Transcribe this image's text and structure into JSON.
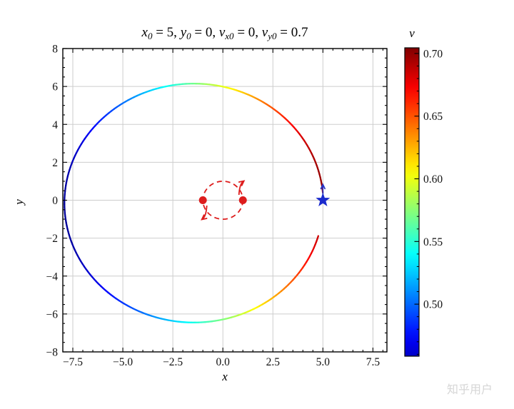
{
  "figure": {
    "title_plain": "x0 = 5, y0 = 0, vx0 = 0, vy0 = 0.7",
    "title_parts": [
      {
        "base": "x",
        "sub": "0",
        "tail": " = 5,  "
      },
      {
        "base": "y",
        "sub": "0",
        "tail": " = 0,  "
      },
      {
        "base": "v",
        "sub": "x0",
        "tail": " = 0,  "
      },
      {
        "base": "v",
        "sub": "y0",
        "tail": " = 0.7"
      }
    ],
    "xlabel": "x",
    "ylabel": "y",
    "watermark": "知乎用户"
  },
  "axes": {
    "xlim": [
      -8,
      8.2
    ],
    "ylim": [
      -8,
      8
    ],
    "x_major_ticks": [
      -7.5,
      -5,
      -2.5,
      0,
      2.5,
      5,
      7.5
    ],
    "x_tick_labels": [
      "−7.5",
      "−5.0",
      "−2.5",
      "0.0",
      "2.5",
      "5.0",
      "7.5"
    ],
    "y_major_ticks": [
      8,
      6,
      4,
      2,
      0,
      -2,
      -4,
      -6,
      -8
    ],
    "y_tick_labels": [
      "8",
      "6",
      "4",
      "2",
      "0",
      "−2",
      "−4",
      "−6",
      "−8"
    ],
    "minor_step": 0.5,
    "grid_color": "#cdcdcd",
    "frame_color": "#000000"
  },
  "colorbar": {
    "label": "v",
    "top_value": 0.7045,
    "bottom_value": 0.4585,
    "tick_values": [
      0.7,
      0.65,
      0.6,
      0.55,
      0.5
    ],
    "tick_labels": [
      "0.70",
      "0.65",
      "0.60",
      "0.55",
      "0.50"
    ],
    "minor_step": 0.01,
    "colormap": "jet"
  },
  "chart_data": {
    "type": "line",
    "title": "x0 = 5, y0 = 0, vx0 = 0, vy0 = 0.7",
    "xlabel": "x",
    "ylabel": "y",
    "xlim": [
      -8,
      8.2
    ],
    "ylim": [
      -8,
      8
    ],
    "grid": true,
    "colorbar_label": "v",
    "color_by": "speed v",
    "v_norm_range": [
      0.45,
      0.705
    ],
    "trajectory_model": {
      "shape": "ellipse",
      "center": [
        -1.45,
        -0.15
      ],
      "semi_major": 6.47,
      "semi_minor": 6.3,
      "theta_start_deg": 5,
      "theta_end_deg": 344,
      "direction": "counterclockwise",
      "speed_law": {
        "v0": 0.7,
        "r0": 5.0,
        "two_mu": 3.82
      }
    },
    "trajectory_points_xyv": [
      [
        5.02,
        -0.15,
        0.698
      ],
      [
        4.15,
        3.0,
        0.685
      ],
      [
        1.79,
        5.31,
        0.639
      ],
      [
        -1.45,
        6.15,
        0.575
      ],
      [
        -4.69,
        5.31,
        0.515
      ],
      [
        -7.05,
        3.0,
        0.473
      ],
      [
        -7.92,
        -0.15,
        0.456
      ],
      [
        -7.05,
        -3.3,
        0.468
      ],
      [
        -4.69,
        -5.61,
        0.504
      ],
      [
        -1.45,
        -6.45,
        0.559
      ],
      [
        1.79,
        -5.61,
        0.621
      ],
      [
        4.15,
        -3.3,
        0.673
      ],
      [
        4.77,
        -1.89,
        0.688
      ]
    ],
    "binary_system": {
      "bodies": [
        [
          -1,
          0
        ],
        [
          1,
          0
        ]
      ],
      "orbit_radius": 1,
      "rotation": "counterclockwise",
      "color": "#dd1c1c"
    },
    "start_marker": {
      "x": 5,
      "y": 0,
      "shape": "star",
      "color": "#1a2acd",
      "velocity_arrow_direction": "up"
    }
  },
  "colors": {
    "red_marker": "#dd1c1c",
    "blue_star": "#1a2acd",
    "blue_arrow": "#2733c4",
    "grid": "#cdcdcd",
    "frame": "#000000",
    "tick_text": "#111111",
    "watermark": "#d6d6d6"
  }
}
